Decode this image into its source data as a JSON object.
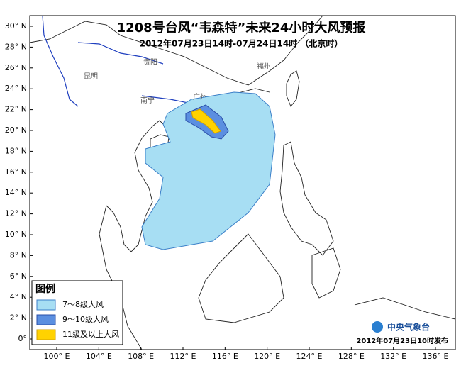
{
  "header": {
    "title": "1208号台风“韦森特”未来24小时大风预报",
    "subtitle": "2012年07月23日14时-07月24日14时 （北京时）"
  },
  "map": {
    "lat_labels": [
      "30° N",
      "28° N",
      "26° N",
      "24° N",
      "22° N",
      "20° N",
      "18° N",
      "16° N",
      "14° N",
      "12° N",
      "10° N",
      "8° N",
      "6° N",
      "4° N",
      "2° N",
      "0°"
    ],
    "lon_labels": [
      "100° E",
      "104° E",
      "108° E",
      "112° E",
      "116° E",
      "120° E",
      "124° E",
      "128° E",
      "132° E",
      "136° E"
    ],
    "cities": [
      "昆明",
      "贵阳",
      "南宁",
      "广州",
      "福州"
    ]
  },
  "legend": {
    "title": "图例",
    "items": [
      "7～8级大风",
      "9～10级大风",
      "11级及以上大风"
    ]
  },
  "footer": {
    "agency": "中央气象台",
    "issued": "2012年07月23日10时发布"
  }
}
